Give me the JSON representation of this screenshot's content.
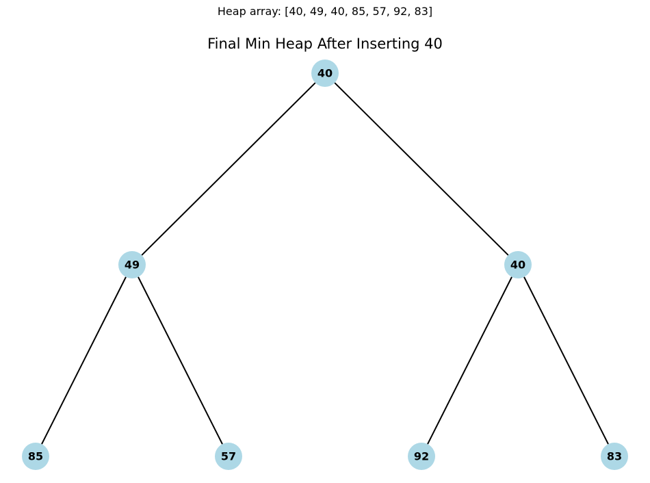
{
  "caption": "Heap array: [40, 49, 40, 85, 57, 92, 83]",
  "title": "Final Min Heap After Inserting 40",
  "colors": {
    "node_fill": "#add8e6",
    "edge": "#000000",
    "text": "#000000"
  },
  "heap": {
    "array": [
      40,
      49,
      40,
      85,
      57,
      92,
      83
    ],
    "nodes": [
      {
        "index": 0,
        "label": "40"
      },
      {
        "index": 1,
        "label": "49"
      },
      {
        "index": 2,
        "label": "40"
      },
      {
        "index": 3,
        "label": "85"
      },
      {
        "index": 4,
        "label": "57"
      },
      {
        "index": 5,
        "label": "92"
      },
      {
        "index": 6,
        "label": "83"
      }
    ],
    "edges": [
      {
        "from": 0,
        "to": 1
      },
      {
        "from": 0,
        "to": 2
      },
      {
        "from": 1,
        "to": 3
      },
      {
        "from": 1,
        "to": 4
      },
      {
        "from": 2,
        "to": 5
      },
      {
        "from": 2,
        "to": 6
      }
    ]
  }
}
